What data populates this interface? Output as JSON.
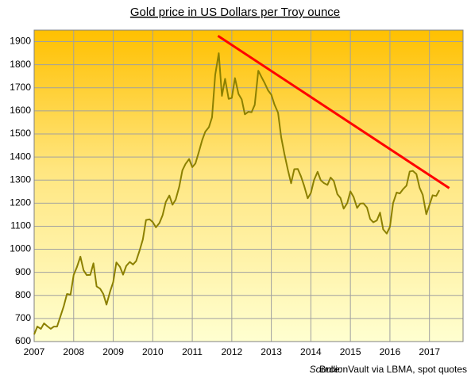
{
  "chart_data": {
    "type": "line",
    "title": "Gold price in US Dollars per Troy  ounce",
    "source_label": "Source:",
    "source": "BullionVault via LBMA, spot quotes",
    "xlim": [
      2007,
      2017.85
    ],
    "ylim": [
      600,
      1950
    ],
    "xticks": [
      2007,
      2008,
      2009,
      2010,
      2011,
      2012,
      2013,
      2014,
      2015,
      2016,
      2017
    ],
    "yticks": [
      600,
      700,
      800,
      900,
      1000,
      1100,
      1200,
      1300,
      1400,
      1500,
      1600,
      1700,
      1800,
      1900
    ],
    "grid": true,
    "x": [
      2007.0,
      2007.08,
      2007.17,
      2007.25,
      2007.33,
      2007.42,
      2007.5,
      2007.58,
      2007.67,
      2007.75,
      2007.83,
      2007.92,
      2008.0,
      2008.08,
      2008.17,
      2008.25,
      2008.33,
      2008.42,
      2008.5,
      2008.58,
      2008.67,
      2008.75,
      2008.83,
      2008.92,
      2009.0,
      2009.08,
      2009.17,
      2009.25,
      2009.33,
      2009.42,
      2009.5,
      2009.58,
      2009.67,
      2009.75,
      2009.83,
      2009.92,
      2010.0,
      2010.08,
      2010.17,
      2010.25,
      2010.33,
      2010.42,
      2010.5,
      2010.58,
      2010.67,
      2010.75,
      2010.83,
      2010.92,
      2011.0,
      2011.08,
      2011.17,
      2011.25,
      2011.33,
      2011.42,
      2011.5,
      2011.58,
      2011.67,
      2011.75,
      2011.83,
      2011.92,
      2012.0,
      2012.08,
      2012.17,
      2012.25,
      2012.33,
      2012.42,
      2012.5,
      2012.58,
      2012.67,
      2012.75,
      2012.83,
      2012.92,
      2013.0,
      2013.08,
      2013.17,
      2013.25,
      2013.33,
      2013.42,
      2013.5,
      2013.58,
      2013.67,
      2013.75,
      2013.83,
      2013.92,
      2014.0,
      2014.08,
      2014.17,
      2014.25,
      2014.33,
      2014.42,
      2014.5,
      2014.58,
      2014.67,
      2014.75,
      2014.83,
      2014.92,
      2015.0,
      2015.08,
      2015.17,
      2015.25,
      2015.33,
      2015.42,
      2015.5,
      2015.58,
      2015.67,
      2015.75,
      2015.83,
      2015.92,
      2016.0,
      2016.08,
      2016.17,
      2016.25,
      2016.33,
      2016.42,
      2016.5,
      2016.58,
      2016.67,
      2016.75,
      2016.83,
      2016.92,
      2017.0,
      2017.08,
      2017.17,
      2017.25
    ],
    "series": [
      {
        "color": "#8c8000",
        "values": [
          631,
          665,
          655,
          679,
          667,
          655,
          665,
          665,
          712,
          754,
          806,
          803,
          889,
          922,
          968,
          909,
          888,
          889,
          939,
          839,
          829,
          806,
          760,
          816,
          858,
          943,
          924,
          890,
          928,
          945,
          934,
          949,
          996,
          1043,
          1127,
          1130,
          1118,
          1095,
          1114,
          1148,
          1205,
          1233,
          1193,
          1215,
          1271,
          1342,
          1370,
          1391,
          1356,
          1372,
          1424,
          1473,
          1510,
          1529,
          1572,
          1756,
          1850,
          1665,
          1739,
          1652,
          1656,
          1742,
          1673,
          1650,
          1585,
          1596,
          1594,
          1626,
          1774,
          1747,
          1721,
          1688,
          1670,
          1627,
          1592,
          1485,
          1414,
          1343,
          1286,
          1347,
          1348,
          1316,
          1275,
          1221,
          1244,
          1300,
          1336,
          1299,
          1287,
          1279,
          1311,
          1296,
          1239,
          1222,
          1176,
          1200,
          1251,
          1227,
          1179,
          1198,
          1199,
          1181,
          1131,
          1117,
          1125,
          1159,
          1086,
          1068,
          1097,
          1200,
          1246,
          1242,
          1260,
          1276,
          1337,
          1340,
          1326,
          1267,
          1236,
          1152,
          1192,
          1234,
          1231,
          1256
        ]
      }
    ],
    "trend": {
      "x": [
        2011.65,
        2017.5
      ],
      "values": [
        1925,
        1265
      ],
      "color": "#ff0000"
    }
  }
}
